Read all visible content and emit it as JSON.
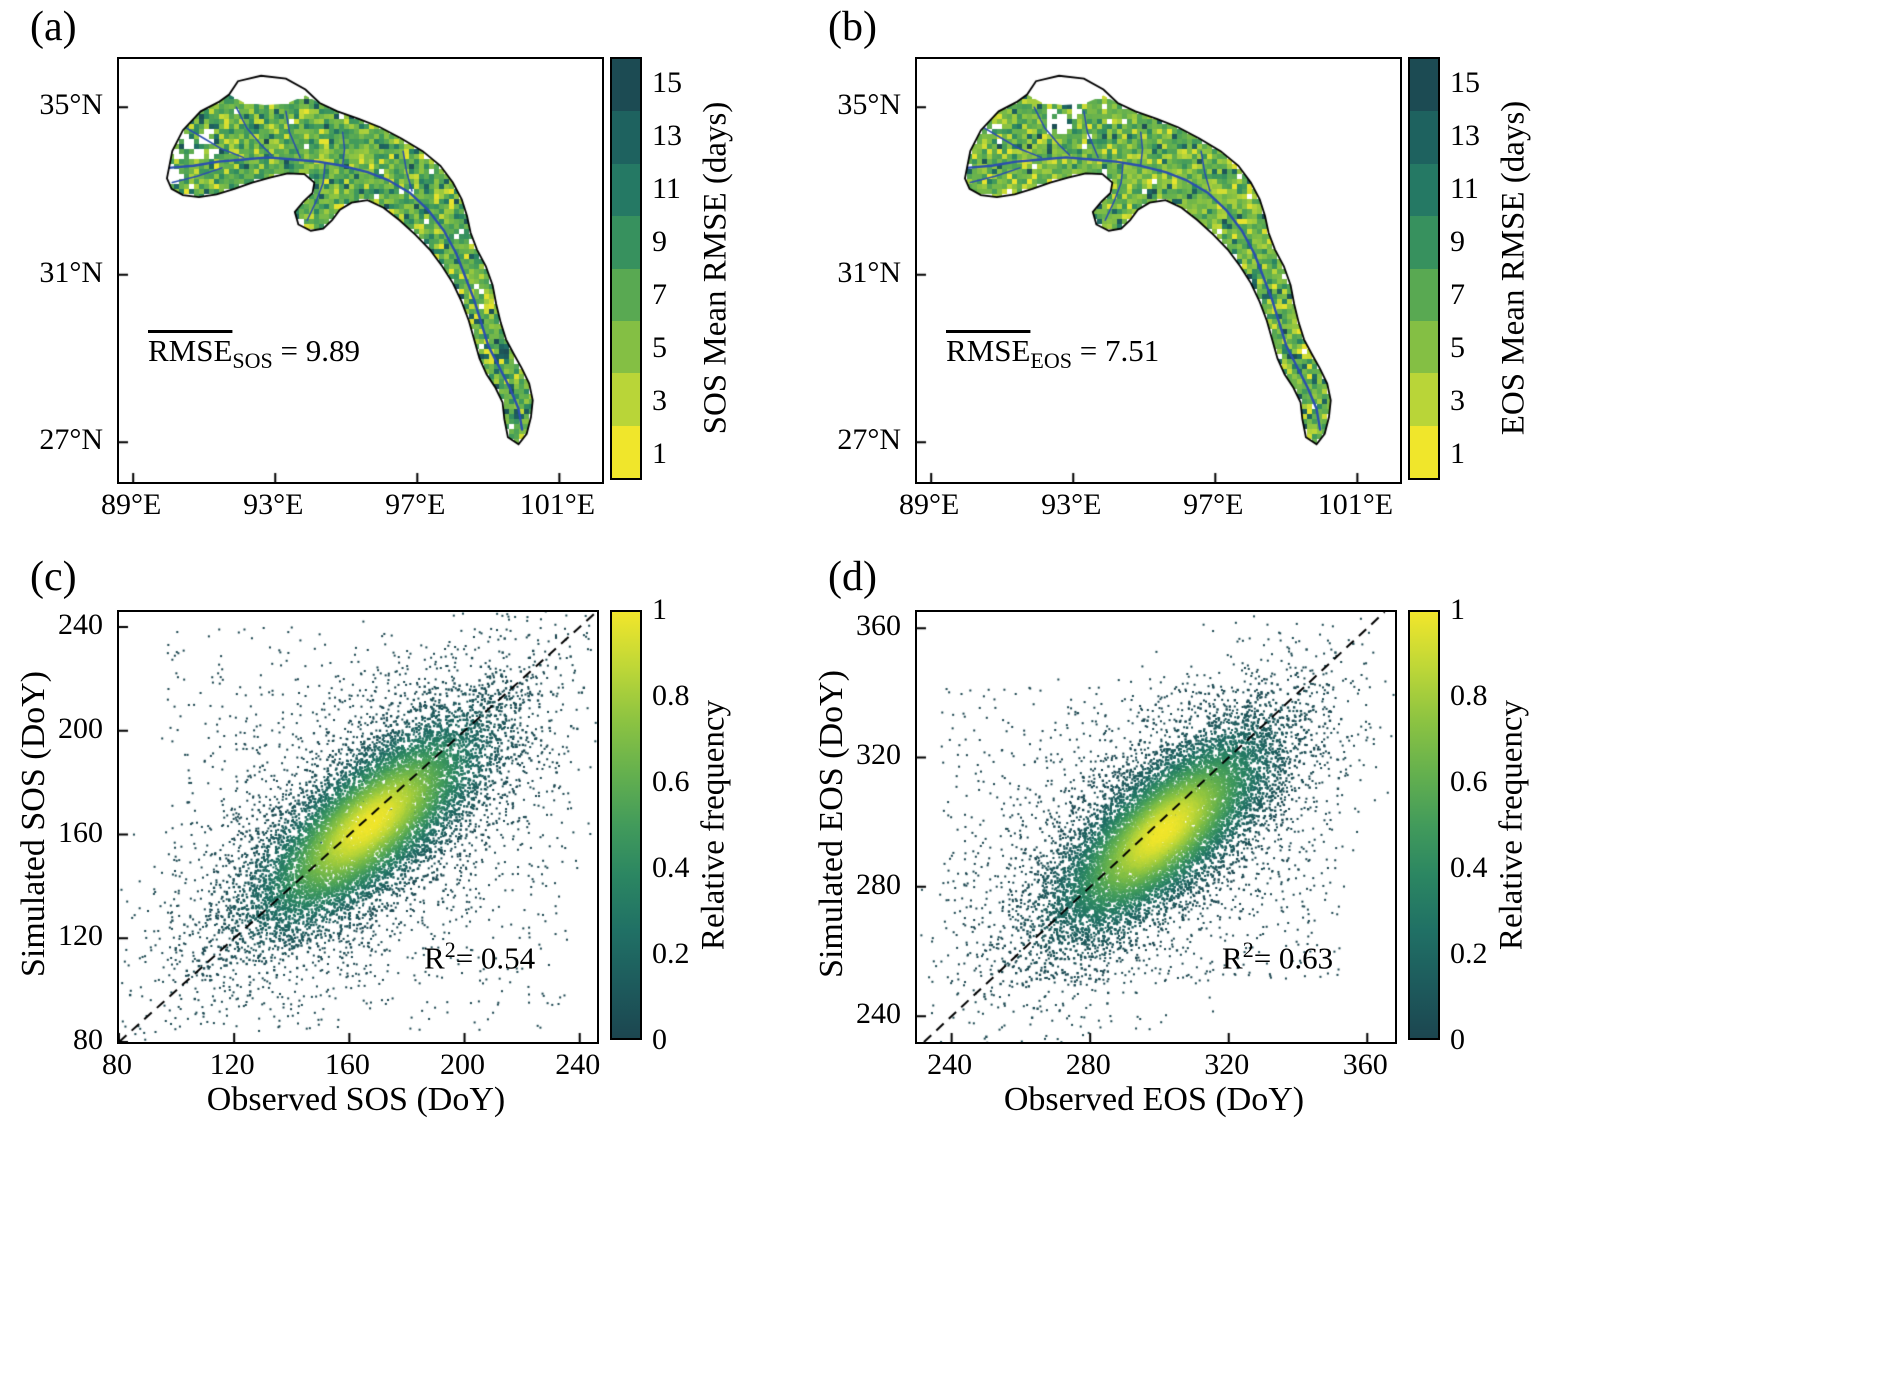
{
  "figure": {
    "background": "#ffffff",
    "text_color": "#000000",
    "river_color": "#2b4fae",
    "outline_color": "#000000"
  },
  "colormap": [
    {
      "t": 0.0,
      "c": "#1c4650"
    },
    {
      "t": 0.12,
      "c": "#1d5a5c"
    },
    {
      "t": 0.25,
      "c": "#207065"
    },
    {
      "t": 0.38,
      "c": "#2b8662"
    },
    {
      "t": 0.5,
      "c": "#429b5b"
    },
    {
      "t": 0.62,
      "c": "#64b04e"
    },
    {
      "t": 0.75,
      "c": "#8ec441"
    },
    {
      "t": 0.87,
      "c": "#bed737"
    },
    {
      "t": 1.0,
      "c": "#f2e62b"
    }
  ],
  "panels": {
    "a": {
      "label": "(a)",
      "x_tick_labels": [
        "89°E",
        "93°E",
        "97°E",
        "101°E"
      ],
      "y_tick_labels": [
        "35°N",
        "31°N",
        "27°N"
      ],
      "annotation": {
        "base": "RMSE",
        "sub": "SOS",
        "tail": " = 9.89"
      },
      "colorbar": {
        "title": "SOS Mean RMSE (days)",
        "tick_labels": [
          "15",
          "13",
          "11",
          "9",
          "7",
          "5",
          "3",
          "1"
        ]
      }
    },
    "b": {
      "label": "(b)",
      "x_tick_labels": [
        "89°E",
        "93°E",
        "97°E",
        "101°E"
      ],
      "y_tick_labels": [
        "35°N",
        "31°N",
        "27°N"
      ],
      "annotation": {
        "base": "RMSE",
        "sub": "EOS",
        "tail": " = 7.51"
      },
      "colorbar": {
        "title": "EOS Mean RMSE (days)",
        "tick_labels": [
          "15",
          "13",
          "11",
          "9",
          "7",
          "5",
          "3",
          "1"
        ]
      }
    },
    "c": {
      "label": "(c)",
      "xlabel": "Observed SOS (DoY)",
      "ylabel": "Simulated SOS (DoY)",
      "x_tick_labels": [
        "80",
        "120",
        "160",
        "200",
        "240"
      ],
      "y_tick_labels": [
        "240",
        "200",
        "160",
        "120",
        "80"
      ],
      "annotation": {
        "base": "R",
        "sup": "2",
        "tail": "= 0.54"
      },
      "colorbar": {
        "title": "Relative frequency",
        "tick_labels": [
          "1",
          "0.8",
          "0.6",
          "0.4",
          "0.2",
          "0"
        ]
      }
    },
    "d": {
      "label": "(d)",
      "xlabel": "Observed EOS (DoY)",
      "ylabel": "Simulated EOS (DoY)",
      "x_tick_labels": [
        "240",
        "280",
        "320",
        "360"
      ],
      "y_tick_labels": [
        "360",
        "320",
        "280",
        "240"
      ],
      "annotation": {
        "base": "R",
        "sup": "2",
        "tail": "= 0.63"
      },
      "colorbar": {
        "title": "Relative frequency",
        "tick_labels": [
          "1",
          "0.8",
          "0.6",
          "0.4",
          "0.2",
          "0"
        ]
      }
    }
  },
  "chart_data": [
    {
      "panel": "a",
      "type": "heatmap",
      "variable": "SOS Mean RMSE",
      "units": "days",
      "mean_rmse": 9.89,
      "annotation_text": "mean RMSE SOS = 9.89",
      "colorbar_label": "SOS Mean RMSE (days)",
      "colorbar_ticks": [
        1,
        3,
        5,
        7,
        9,
        11,
        13,
        15
      ],
      "colorbar_range": [
        0,
        16
      ],
      "lon_range": [
        88.6,
        102.2
      ],
      "lat_range": [
        26.05,
        36.15
      ],
      "lon_ticks": [
        89,
        93,
        97,
        101
      ],
      "lat_ticks": [
        35,
        31,
        27
      ],
      "description": "Gridded map of SOS RMSE (days) over a river basin, mostly 5-11 days (green), scattered high values (dark teal) in the southeast arm, rivers in blue."
    },
    {
      "panel": "b",
      "type": "heatmap",
      "variable": "EOS Mean RMSE",
      "units": "days",
      "mean_rmse": 7.51,
      "annotation_text": "mean RMSE EOS = 7.51",
      "colorbar_label": "EOS Mean RMSE (days)",
      "colorbar_ticks": [
        1,
        3,
        5,
        7,
        9,
        11,
        13,
        15
      ],
      "colorbar_range": [
        0,
        16
      ],
      "lon_range": [
        88.6,
        102.2
      ],
      "lat_range": [
        26.05,
        36.15
      ],
      "lon_ticks": [
        89,
        93,
        97,
        101
      ],
      "lat_ticks": [
        35,
        31,
        27
      ],
      "description": "Gridded map of EOS RMSE (days) over the same basin, slightly lower values than panel a."
    },
    {
      "panel": "c",
      "type": "scatter",
      "xlabel": "Observed SOS (DoY)",
      "ylabel": "Simulated SOS (DoY)",
      "r_squared": 0.54,
      "xlim": [
        80,
        246
      ],
      "ylim": [
        80,
        245.8
      ],
      "x_ticks": [
        80,
        120,
        160,
        200,
        240
      ],
      "y_ticks": [
        240,
        200,
        160,
        120,
        80
      ],
      "identity_line": true,
      "colorbar_label": "Relative frequency",
      "colorbar_range": [
        0,
        1
      ],
      "colorbar_ticks": [
        1,
        0.8,
        0.6,
        0.4,
        0.2,
        0
      ],
      "density": {
        "center_x": 167,
        "center_y": 164,
        "sigma_major": 26,
        "sigma_minor": 10,
        "sigma_major_bg": 46,
        "sigma_minor_bg": 22,
        "n_core": 9000,
        "n_bg": 3200,
        "n_outlier": 650,
        "outlier_box": [
          95,
          236,
          84,
          240
        ]
      }
    },
    {
      "panel": "d",
      "type": "scatter",
      "xlabel": "Observed EOS (DoY)",
      "ylabel": "Simulated EOS (DoY)",
      "r_squared": 0.63,
      "xlim": [
        230,
        368
      ],
      "ylim": [
        232,
        365
      ],
      "x_ticks": [
        240,
        280,
        320,
        360
      ],
      "y_ticks": [
        360,
        320,
        280,
        240
      ],
      "identity_line": true,
      "colorbar_label": "Relative frequency",
      "colorbar_range": [
        0,
        1
      ],
      "colorbar_ticks": [
        1,
        0.8,
        0.6,
        0.4,
        0.2,
        0
      ],
      "density": {
        "center_x": 301,
        "center_y": 297,
        "sigma_major": 20,
        "sigma_minor": 8,
        "sigma_major_bg": 33,
        "sigma_minor_bg": 16,
        "n_core": 9500,
        "n_bg": 3200,
        "n_outlier": 700,
        "outlier_box": [
          237,
          352,
          250,
          342
        ]
      }
    }
  ],
  "basin_geometry": {
    "outline": [
      [
        89.95,
        33.3
      ],
      [
        90.1,
        33.95
      ],
      [
        90.4,
        34.45
      ],
      [
        90.9,
        34.9
      ],
      [
        91.4,
        35.12
      ],
      [
        91.7,
        35.3
      ],
      [
        91.95,
        35.62
      ],
      [
        92.6,
        35.75
      ],
      [
        93.3,
        35.68
      ],
      [
        93.85,
        35.42
      ],
      [
        94.25,
        35.1
      ],
      [
        94.75,
        34.9
      ],
      [
        95.35,
        34.72
      ],
      [
        95.95,
        34.52
      ],
      [
        96.55,
        34.25
      ],
      [
        97.15,
        33.95
      ],
      [
        97.65,
        33.6
      ],
      [
        98.0,
        33.2
      ],
      [
        98.25,
        32.8
      ],
      [
        98.4,
        32.4
      ],
      [
        98.5,
        32.0
      ],
      [
        98.68,
        31.6
      ],
      [
        98.93,
        31.2
      ],
      [
        99.12,
        30.75
      ],
      [
        99.22,
        30.3
      ],
      [
        99.35,
        29.85
      ],
      [
        99.5,
        29.45
      ],
      [
        99.72,
        29.1
      ],
      [
        99.95,
        28.75
      ],
      [
        100.15,
        28.4
      ],
      [
        100.25,
        28.0
      ],
      [
        100.2,
        27.6
      ],
      [
        100.08,
        27.2
      ],
      [
        99.85,
        26.95
      ],
      [
        99.55,
        27.12
      ],
      [
        99.45,
        27.55
      ],
      [
        99.4,
        27.95
      ],
      [
        99.2,
        28.3
      ],
      [
        98.95,
        28.62
      ],
      [
        98.75,
        29.0
      ],
      [
        98.6,
        29.45
      ],
      [
        98.45,
        29.9
      ],
      [
        98.25,
        30.35
      ],
      [
        98.0,
        30.8
      ],
      [
        97.7,
        31.2
      ],
      [
        97.35,
        31.6
      ],
      [
        96.95,
        31.95
      ],
      [
        96.5,
        32.3
      ],
      [
        96.05,
        32.6
      ],
      [
        95.6,
        32.78
      ],
      [
        95.15,
        32.72
      ],
      [
        94.82,
        32.55
      ],
      [
        94.6,
        32.3
      ],
      [
        94.35,
        32.1
      ],
      [
        94.0,
        32.05
      ],
      [
        93.65,
        32.2
      ],
      [
        93.55,
        32.5
      ],
      [
        93.8,
        32.75
      ],
      [
        94.05,
        32.95
      ],
      [
        94.1,
        33.2
      ],
      [
        93.82,
        33.4
      ],
      [
        93.35,
        33.42
      ],
      [
        92.85,
        33.32
      ],
      [
        92.35,
        33.2
      ],
      [
        91.85,
        33.05
      ],
      [
        91.35,
        32.92
      ],
      [
        90.85,
        32.85
      ],
      [
        90.4,
        32.9
      ],
      [
        90.08,
        33.05
      ]
    ],
    "fill": [
      [
        89.95,
        33.3
      ],
      [
        90.1,
        33.95
      ],
      [
        90.4,
        34.45
      ],
      [
        90.9,
        34.9
      ],
      [
        91.4,
        35.12
      ],
      [
        91.7,
        35.3
      ],
      [
        92.1,
        35.12
      ],
      [
        92.7,
        35.05
      ],
      [
        93.3,
        35.08
      ],
      [
        93.85,
        35.28
      ],
      [
        94.25,
        35.1
      ],
      [
        94.75,
        34.9
      ],
      [
        95.35,
        34.72
      ],
      [
        95.95,
        34.52
      ],
      [
        96.55,
        34.25
      ],
      [
        97.15,
        33.95
      ],
      [
        97.65,
        33.6
      ],
      [
        98.0,
        33.2
      ],
      [
        98.25,
        32.8
      ],
      [
        98.4,
        32.4
      ],
      [
        98.5,
        32.0
      ],
      [
        98.68,
        31.6
      ],
      [
        98.93,
        31.2
      ],
      [
        99.12,
        30.75
      ],
      [
        99.22,
        30.3
      ],
      [
        99.35,
        29.85
      ],
      [
        99.5,
        29.45
      ],
      [
        99.72,
        29.1
      ],
      [
        99.95,
        28.75
      ],
      [
        100.15,
        28.4
      ],
      [
        100.25,
        28.0
      ],
      [
        100.2,
        27.6
      ],
      [
        100.08,
        27.2
      ],
      [
        99.85,
        26.95
      ],
      [
        99.55,
        27.12
      ],
      [
        99.45,
        27.55
      ],
      [
        99.4,
        27.95
      ],
      [
        99.2,
        28.3
      ],
      [
        98.95,
        28.62
      ],
      [
        98.75,
        29.0
      ],
      [
        98.6,
        29.45
      ],
      [
        98.45,
        29.9
      ],
      [
        98.25,
        30.35
      ],
      [
        98.0,
        30.8
      ],
      [
        97.7,
        31.2
      ],
      [
        97.35,
        31.6
      ],
      [
        96.95,
        31.95
      ],
      [
        96.5,
        32.3
      ],
      [
        96.05,
        32.6
      ],
      [
        95.6,
        32.78
      ],
      [
        95.15,
        32.72
      ],
      [
        94.82,
        32.55
      ],
      [
        94.6,
        32.3
      ],
      [
        94.35,
        32.1
      ],
      [
        94.0,
        32.05
      ],
      [
        93.65,
        32.2
      ],
      [
        93.55,
        32.5
      ],
      [
        93.8,
        32.75
      ],
      [
        94.05,
        32.95
      ],
      [
        94.1,
        33.2
      ],
      [
        93.82,
        33.4
      ],
      [
        93.35,
        33.42
      ],
      [
        92.85,
        33.32
      ],
      [
        92.35,
        33.2
      ],
      [
        91.85,
        33.05
      ],
      [
        91.35,
        32.92
      ],
      [
        90.85,
        32.85
      ],
      [
        90.4,
        32.9
      ],
      [
        90.08,
        33.05
      ]
    ],
    "rivers": [
      [
        [
          90.0,
          33.55
        ],
        [
          90.7,
          33.6
        ],
        [
          91.4,
          33.7
        ],
        [
          92.1,
          33.75
        ],
        [
          92.8,
          33.8
        ],
        [
          93.5,
          33.75
        ],
        [
          94.2,
          33.7
        ],
        [
          94.9,
          33.6
        ],
        [
          95.6,
          33.45
        ],
        [
          96.2,
          33.25
        ],
        [
          96.8,
          32.95
        ],
        [
          97.3,
          32.55
        ],
        [
          97.75,
          32.05
        ],
        [
          98.1,
          31.5
        ],
        [
          98.35,
          30.95
        ],
        [
          98.6,
          30.4
        ],
        [
          98.8,
          29.85
        ],
        [
          99.0,
          29.3
        ],
        [
          99.3,
          28.8
        ],
        [
          99.6,
          28.3
        ],
        [
          99.85,
          27.8
        ],
        [
          99.95,
          27.3
        ]
      ],
      [
        [
          90.3,
          34.6
        ],
        [
          90.9,
          34.3
        ],
        [
          91.5,
          34.0
        ],
        [
          92.1,
          33.8
        ]
      ],
      [
        [
          91.9,
          35.0
        ],
        [
          92.2,
          34.5
        ],
        [
          92.6,
          34.1
        ],
        [
          92.9,
          33.85
        ]
      ],
      [
        [
          93.3,
          34.9
        ],
        [
          93.4,
          34.4
        ],
        [
          93.6,
          34.0
        ],
        [
          93.7,
          33.8
        ]
      ],
      [
        [
          90.1,
          33.2
        ],
        [
          90.8,
          33.35
        ],
        [
          91.5,
          33.55
        ]
      ],
      [
        [
          93.9,
          32.3
        ],
        [
          94.15,
          32.75
        ],
        [
          94.35,
          33.2
        ],
        [
          94.4,
          33.65
        ]
      ],
      [
        [
          96.6,
          33.95
        ],
        [
          96.7,
          33.45
        ],
        [
          96.85,
          33.0
        ]
      ],
      [
        [
          94.9,
          34.4
        ],
        [
          94.95,
          34.0
        ],
        [
          94.9,
          33.62
        ]
      ]
    ],
    "white_patches": {
      "a": [
        [
          90.15,
          91.35,
          33.75,
          34.5
        ],
        [
          89.95,
          90.5,
          33.2,
          33.6
        ]
      ],
      "b": [
        [
          92.3,
          93.3,
          34.35,
          35.0
        ],
        [
          90.2,
          91.0,
          34.1,
          34.6
        ]
      ]
    }
  }
}
